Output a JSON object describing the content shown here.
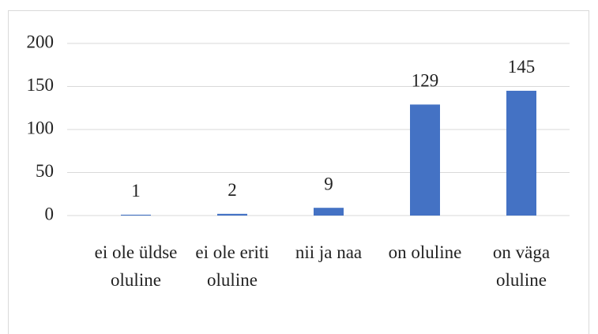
{
  "chart_data": {
    "type": "bar",
    "categories": [
      "ei ole üldse oluline",
      "ei ole eriti oluline",
      "nii ja naa",
      "on oluline",
      "on väga oluline"
    ],
    "values": [
      1,
      2,
      9,
      129,
      145
    ],
    "color": "#4472c4",
    "ylim": [
      0,
      200
    ],
    "yticks": [
      0,
      50,
      100,
      150,
      200
    ],
    "grid": true
  }
}
